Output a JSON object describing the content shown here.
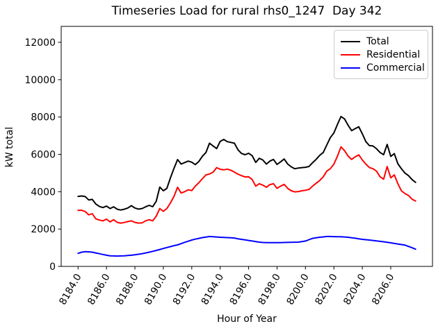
{
  "title": "Timeseries Load for rural rhs0_1247  Day 342",
  "chart_data": {
    "type": "line",
    "title": "Timeseries Load for rural rhs0_1247  Day 342",
    "xlabel": "Hour of Year",
    "ylabel": "kW total",
    "grid": false,
    "legend_position": "upper right",
    "xlim": [
      8182.8125,
      8208.9375
    ],
    "ylim": [
      0,
      12855
    ],
    "x_start": 8184.0,
    "x_step": 0.25,
    "xticks": [
      8184.0,
      8186.0,
      8188.0,
      8190.0,
      8192.0,
      8194.0,
      8196.0,
      8198.0,
      8200.0,
      8202.0,
      8204.0,
      8206.0
    ],
    "xtick_labels": [
      "8184.0",
      "8186.0",
      "8188.0",
      "8190.0",
      "8192.0",
      "8194.0",
      "8196.0",
      "8198.0",
      "8200.0",
      "8202.0",
      "8204.0",
      "8206.0"
    ],
    "xtick_rotation": 60,
    "yticks": [
      0,
      2000,
      4000,
      6000,
      8000,
      10000,
      12000
    ],
    "series": [
      {
        "name": "Total",
        "color": "#000000",
        "values": [
          3750,
          3770,
          3740,
          3560,
          3590,
          3340,
          3210,
          3150,
          3230,
          3100,
          3190,
          3060,
          3020,
          3060,
          3130,
          3250,
          3130,
          3070,
          3100,
          3190,
          3270,
          3200,
          3490,
          4250,
          4050,
          4180,
          4740,
          5250,
          5720,
          5480,
          5560,
          5640,
          5580,
          5450,
          5620,
          5900,
          6100,
          6600,
          6450,
          6310,
          6700,
          6800,
          6680,
          6640,
          6600,
          6250,
          6050,
          5980,
          6060,
          5930,
          5570,
          5790,
          5700,
          5480,
          5640,
          5730,
          5460,
          5600,
          5750,
          5480,
          5330,
          5230,
          5270,
          5290,
          5310,
          5350,
          5550,
          5730,
          5950,
          6100,
          6500,
          6900,
          7150,
          7600,
          8030,
          7900,
          7560,
          7270,
          7380,
          7480,
          7100,
          6680,
          6470,
          6450,
          6300,
          6100,
          5980,
          6530,
          5890,
          6040,
          5500,
          5230,
          5000,
          4860,
          4650,
          4500
        ]
      },
      {
        "name": "Residential",
        "color": "#ff0000",
        "values": [
          3000,
          3010,
          2940,
          2760,
          2820,
          2550,
          2480,
          2440,
          2530,
          2380,
          2500,
          2360,
          2320,
          2350,
          2400,
          2440,
          2360,
          2320,
          2330,
          2440,
          2500,
          2440,
          2690,
          3100,
          2950,
          3100,
          3400,
          3750,
          4240,
          3930,
          4000,
          4100,
          4060,
          4300,
          4480,
          4700,
          4900,
          4950,
          5050,
          5290,
          5200,
          5170,
          5210,
          5150,
          5050,
          4940,
          4860,
          4790,
          4800,
          4650,
          4300,
          4430,
          4350,
          4240,
          4380,
          4430,
          4180,
          4300,
          4390,
          4180,
          4050,
          3990,
          4010,
          4050,
          4080,
          4120,
          4300,
          4450,
          4600,
          4800,
          5100,
          5230,
          5480,
          5900,
          6400,
          6200,
          5910,
          5730,
          5870,
          5975,
          5700,
          5480,
          5290,
          5230,
          5100,
          4800,
          4670,
          5350,
          4740,
          4900,
          4430,
          4050,
          3900,
          3800,
          3600,
          3500
        ]
      },
      {
        "name": "Commercial",
        "color": "#0000ff",
        "values": [
          700,
          760,
          790,
          780,
          760,
          720,
          680,
          640,
          600,
          570,
          560,
          555,
          560,
          570,
          585,
          600,
          625,
          650,
          680,
          720,
          760,
          805,
          855,
          905,
          960,
          1010,
          1060,
          1110,
          1150,
          1220,
          1290,
          1350,
          1410,
          1460,
          1500,
          1540,
          1570,
          1600,
          1590,
          1575,
          1560,
          1550,
          1540,
          1530,
          1520,
          1480,
          1450,
          1420,
          1390,
          1360,
          1330,
          1300,
          1280,
          1275,
          1270,
          1270,
          1270,
          1275,
          1280,
          1285,
          1290,
          1295,
          1300,
          1330,
          1360,
          1430,
          1500,
          1530,
          1560,
          1580,
          1600,
          1600,
          1595,
          1590,
          1590,
          1575,
          1560,
          1535,
          1510,
          1480,
          1450,
          1430,
          1410,
          1390,
          1365,
          1340,
          1320,
          1290,
          1265,
          1230,
          1200,
          1170,
          1140,
          1070,
          1000,
          920
        ]
      }
    ]
  }
}
